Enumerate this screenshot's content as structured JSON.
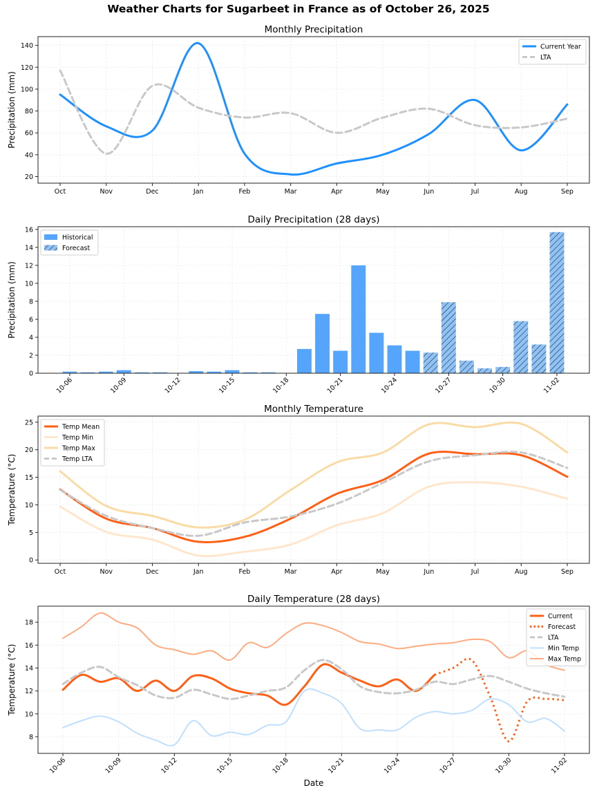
{
  "title": "Weather Charts for Sugarbeet in France as of October 26, 2025",
  "chart_data": [
    {
      "type": "line",
      "title": "Monthly Precipitation",
      "xlabel": "",
      "ylabel": "Precipitation (mm)",
      "categories": [
        "Oct",
        "Nov",
        "Dec",
        "Jan",
        "Feb",
        "Mar",
        "Apr",
        "May",
        "Jun",
        "Jul",
        "Aug",
        "Sep"
      ],
      "ylim": [
        14,
        148
      ],
      "yticks": [
        20,
        40,
        60,
        80,
        100,
        120,
        140
      ],
      "grid": true,
      "legend": "top-right",
      "series": [
        {
          "name": "Current Year",
          "color": "#1e90ff",
          "style": "solid",
          "values": [
            95,
            66,
            62,
            142,
            41,
            22,
            32,
            40,
            59,
            90,
            44,
            86
          ]
        },
        {
          "name": "LTA",
          "color": "#c8c8c8",
          "style": "dashed",
          "values": [
            117,
            41,
            103,
            83,
            74,
            78,
            60,
            74,
            82,
            67,
            65,
            73
          ]
        }
      ]
    },
    {
      "type": "bar",
      "title": "Daily Precipitation (28 days)",
      "xlabel": "",
      "ylabel": "Precipitation (mm)",
      "categories": [
        "10-06",
        "10-07",
        "10-08",
        "10-09",
        "10-10",
        "10-11",
        "10-12",
        "10-13",
        "10-14",
        "10-15",
        "10-16",
        "10-17",
        "10-18",
        "10-19",
        "10-20",
        "10-21",
        "10-22",
        "10-23",
        "10-24",
        "10-25",
        "10-26",
        "10-27",
        "10-28",
        "10-29",
        "10-30",
        "10-31",
        "11-01",
        "11-02"
      ],
      "tick_every": 3,
      "ylim": [
        0,
        16.3
      ],
      "yticks": [
        0,
        2,
        4,
        6,
        8,
        10,
        12,
        14,
        16
      ],
      "grid": true,
      "legend": "top-left",
      "series": [
        {
          "name": "Historical",
          "color": "#56a5fc",
          "hatch": false,
          "values": [
            0.18,
            0.1,
            0.18,
            0.34,
            0.1,
            0.1,
            0,
            0.23,
            0.18,
            0.34,
            0.1,
            0.1,
            0,
            2.7,
            6.6,
            2.5,
            12.0,
            4.5,
            3.1,
            2.5,
            null,
            null,
            null,
            null,
            null,
            null,
            null,
            null
          ]
        },
        {
          "name": "Forecast",
          "color": "#8fc3f7",
          "hatch": true,
          "values": [
            null,
            null,
            null,
            null,
            null,
            null,
            null,
            null,
            null,
            null,
            null,
            null,
            null,
            null,
            null,
            null,
            null,
            null,
            null,
            null,
            2.3,
            7.9,
            1.4,
            0.55,
            0.7,
            5.8,
            3.2,
            15.7
          ]
        }
      ]
    },
    {
      "type": "line",
      "title": "Monthly Temperature",
      "xlabel": "",
      "ylabel": "Temperature (°C)",
      "categories": [
        "Oct",
        "Nov",
        "Dec",
        "Jan",
        "Feb",
        "Mar",
        "Apr",
        "May",
        "Jun",
        "Jul",
        "Aug",
        "Sep"
      ],
      "ylim": [
        -0.6,
        26.1
      ],
      "yticks": [
        0,
        5,
        10,
        15,
        20,
        25
      ],
      "grid": true,
      "legend": "top-left",
      "series": [
        {
          "name": "Temp Mean",
          "color": "#ff5f15",
          "style": "solid",
          "values": [
            12.8,
            7.5,
            5.8,
            3.3,
            4.2,
            7.5,
            12.0,
            14.5,
            19.3,
            19.2,
            19.0,
            15.1
          ]
        },
        {
          "name": "Temp Min",
          "color": "#ffe6cc",
          "style": "solid",
          "values": [
            9.7,
            5.1,
            3.7,
            0.8,
            1.5,
            2.8,
            6.3,
            8.5,
            13.3,
            14.1,
            13.3,
            11.1
          ]
        },
        {
          "name": "Temp Max",
          "color": "#f9dba6",
          "style": "solid",
          "values": [
            16.1,
            9.8,
            8.0,
            5.9,
            7.3,
            12.7,
            17.7,
            19.5,
            24.6,
            24.1,
            24.7,
            19.5
          ]
        },
        {
          "name": "Temp LTA",
          "color": "#c8c8c8",
          "style": "dashed",
          "values": [
            12.7,
            8.0,
            5.8,
            4.4,
            6.8,
            7.9,
            10.2,
            14.0,
            17.9,
            19.0,
            19.5,
            16.7
          ]
        }
      ]
    },
    {
      "type": "line",
      "title": "Daily Temperature (28 days)",
      "xlabel": "Date",
      "ylabel": "Temperature (°C)",
      "categories": [
        "10-06",
        "10-07",
        "10-08",
        "10-09",
        "10-10",
        "10-11",
        "10-12",
        "10-13",
        "10-14",
        "10-15",
        "10-16",
        "10-17",
        "10-18",
        "10-19",
        "10-20",
        "10-21",
        "10-22",
        "10-23",
        "10-24",
        "10-25",
        "10-26",
        "10-27",
        "10-28",
        "10-29",
        "10-30",
        "10-31",
        "11-01",
        "11-02"
      ],
      "tick_every": 3,
      "ylim": [
        6.55,
        19.4
      ],
      "yticks": [
        8,
        10,
        12,
        14,
        16,
        18
      ],
      "grid": true,
      "legend": "top-right",
      "series": [
        {
          "name": "Current",
          "color": "#ff5f15",
          "style": "solid",
          "values": [
            12.1,
            13.4,
            12.8,
            13.1,
            12.0,
            12.9,
            12.0,
            13.3,
            13.1,
            12.2,
            11.8,
            11.6,
            10.8,
            12.4,
            14.3,
            13.6,
            12.9,
            12.4,
            13.0,
            12.0,
            13.4,
            null,
            null,
            null,
            null,
            null,
            null,
            null
          ]
        },
        {
          "name": "Forecast",
          "color": "#ff5f15",
          "style": "dotted",
          "values": [
            null,
            null,
            null,
            null,
            null,
            null,
            null,
            null,
            null,
            null,
            null,
            null,
            null,
            null,
            null,
            null,
            null,
            null,
            null,
            null,
            13.4,
            14.0,
            14.7,
            11.5,
            7.6,
            11.1,
            11.3,
            11.2
          ]
        },
        {
          "name": "LTA",
          "color": "#c8c8c8",
          "style": "dashed",
          "values": [
            12.6,
            13.6,
            14.1,
            13.2,
            12.5,
            11.6,
            11.4,
            12.1,
            11.7,
            11.3,
            11.6,
            12.0,
            12.3,
            13.8,
            14.7,
            13.9,
            12.4,
            11.9,
            11.8,
            12.1,
            12.8,
            12.6,
            13.0,
            13.3,
            12.8,
            12.2,
            11.8,
            11.5
          ]
        },
        {
          "name": "Min Temp",
          "color": "#bfdfff",
          "style": "solid",
          "values": [
            8.8,
            9.4,
            9.8,
            9.3,
            8.3,
            7.7,
            7.3,
            9.4,
            8.1,
            8.4,
            8.2,
            9.0,
            9.3,
            12.0,
            11.8,
            10.9,
            8.7,
            8.6,
            8.6,
            9.7,
            10.2,
            10.0,
            10.3,
            11.3,
            10.8,
            9.3,
            9.6,
            8.5
          ]
        },
        {
          "name": "Max Temp",
          "color": "#ffab80",
          "style": "solid",
          "values": [
            16.6,
            17.6,
            18.8,
            18.0,
            17.5,
            16.0,
            15.6,
            15.2,
            15.5,
            14.7,
            16.2,
            15.8,
            17.0,
            17.9,
            17.7,
            17.1,
            16.3,
            16.1,
            15.7,
            15.9,
            16.1,
            16.2,
            16.5,
            16.3,
            14.9,
            15.5,
            14.3,
            13.8
          ]
        }
      ]
    }
  ]
}
